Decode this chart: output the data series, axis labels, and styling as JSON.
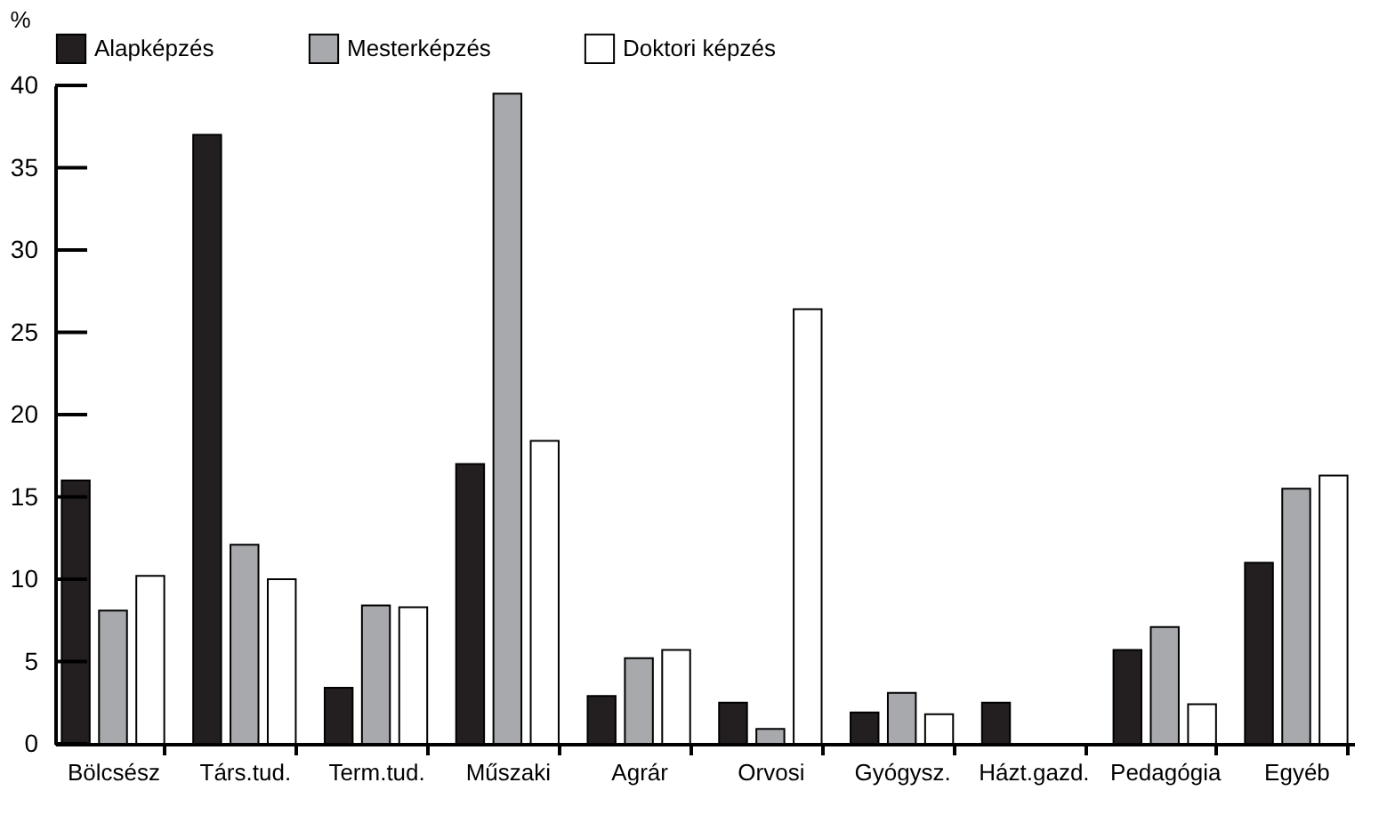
{
  "chart_data": {
    "type": "bar",
    "ylabel": "%",
    "categories": [
      "Bölcsész",
      "Társ.tud.",
      "Term.tud.",
      "Műszaki",
      "Agrár",
      "Orvosi",
      "Gyógysz.",
      "Házt.gazd.",
      "Pedagógia",
      "Egyéb"
    ],
    "series": [
      {
        "name": "Alapképzés",
        "color": "#231f20",
        "values": [
          16.0,
          37.0,
          3.4,
          17.0,
          2.9,
          2.5,
          1.9,
          2.5,
          5.7,
          11.0
        ]
      },
      {
        "name": "Mesterképzés",
        "color": "#a7a9ac",
        "values": [
          8.1,
          12.1,
          8.4,
          39.5,
          5.2,
          0.9,
          3.1,
          null,
          7.1,
          15.5
        ]
      },
      {
        "name": "Doktori képzés",
        "color": "#ffffff",
        "values": [
          10.2,
          10.0,
          8.3,
          18.4,
          5.7,
          26.4,
          1.8,
          null,
          2.4,
          16.3
        ]
      }
    ],
    "ylim": [
      0,
      40
    ],
    "yticks": [
      0,
      5,
      10,
      15,
      20,
      25,
      30,
      35,
      40
    ],
    "grid": false,
    "legend": "top"
  }
}
